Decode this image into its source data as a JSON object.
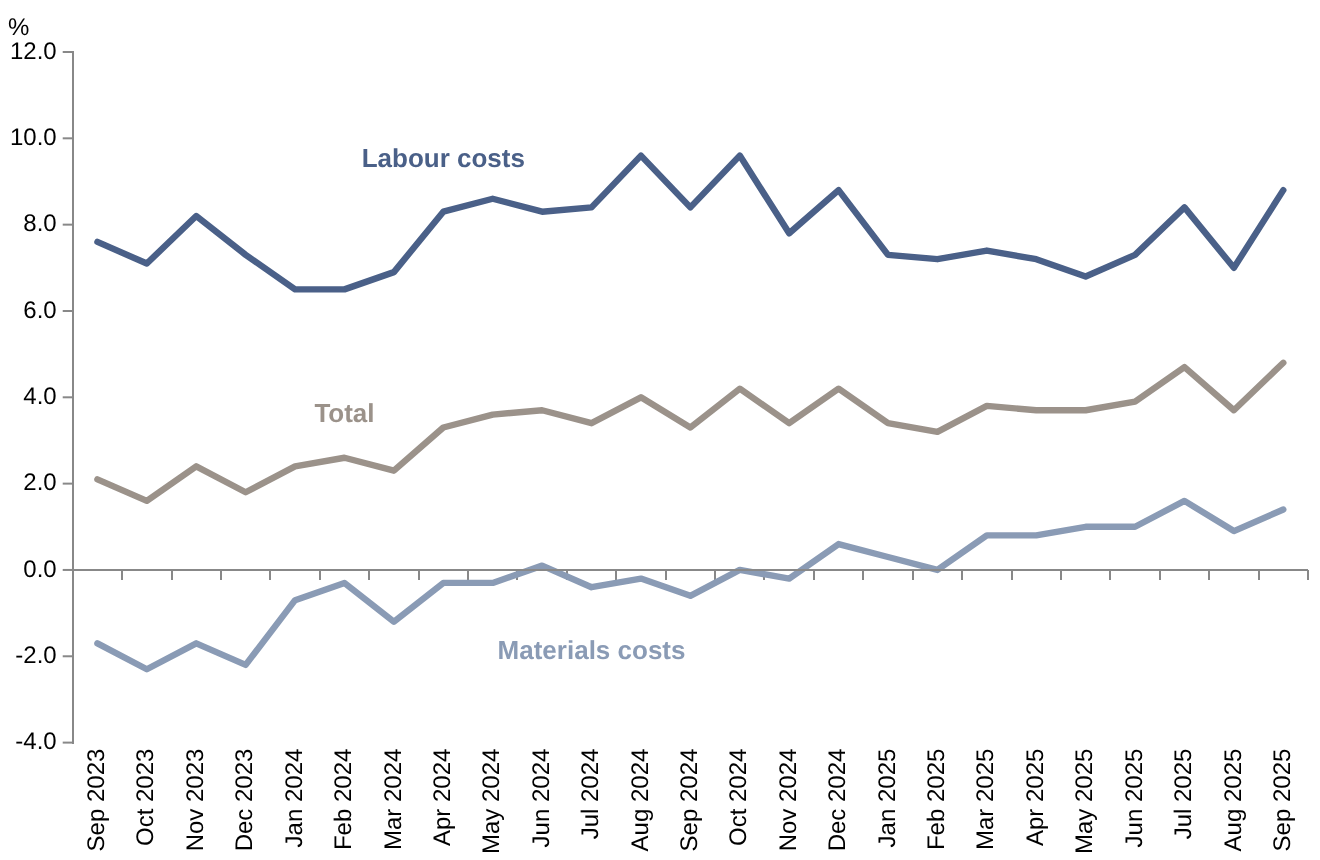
{
  "chart_data": {
    "type": "line",
    "ylabel": "%",
    "categories": [
      "Sep 2023",
      "Oct 2023",
      "Nov 2023",
      "Dec 2023",
      "Jan 2024",
      "Feb 2024",
      "Mar 2024",
      "Apr 2024",
      "May 2024",
      "Jun 2024",
      "Jul 2024",
      "Aug 2024",
      "Sep 2024",
      "Oct 2024",
      "Nov 2024",
      "Dec 2024",
      "Jan 2025",
      "Feb 2025",
      "Mar 2025",
      "Apr 2025",
      "May 2025",
      "Jun 2025",
      "Jul 2025",
      "Aug 2025",
      "Sep 2025"
    ],
    "series": [
      {
        "name": "Labour costs",
        "color": "#4a6088",
        "values": [
          7.6,
          7.1,
          8.2,
          7.3,
          6.5,
          6.5,
          6.9,
          8.3,
          8.6,
          8.3,
          8.4,
          9.6,
          8.4,
          9.6,
          7.8,
          8.8,
          7.3,
          7.2,
          7.4,
          7.2,
          6.8,
          7.3,
          8.4,
          7.0,
          8.8
        ]
      },
      {
        "name": "Total",
        "color": "#9b928a",
        "values": [
          2.1,
          1.6,
          2.4,
          1.8,
          2.4,
          2.6,
          2.3,
          3.3,
          3.6,
          3.7,
          3.4,
          4.0,
          3.3,
          4.2,
          3.4,
          4.2,
          3.4,
          3.2,
          3.8,
          3.7,
          3.7,
          3.9,
          4.7,
          3.7,
          4.8
        ]
      },
      {
        "name": "Materials costs",
        "color": "#8a9bb5",
        "values": [
          -1.7,
          -2.3,
          -1.7,
          -2.2,
          -0.7,
          -0.3,
          -1.2,
          -0.3,
          -0.3,
          0.1,
          -0.4,
          -0.2,
          -0.6,
          0.0,
          -0.2,
          0.6,
          0.3,
          0.0,
          0.8,
          0.8,
          1.0,
          1.0,
          1.6,
          0.9,
          1.4
        ]
      }
    ],
    "ylim": [
      -4,
      12
    ],
    "yticks": [
      {
        "value": -4,
        "label": "-4.0"
      },
      {
        "value": -2,
        "label": "-2.0"
      },
      {
        "value": 0,
        "label": "0.0"
      },
      {
        "value": 2,
        "label": "2.0"
      },
      {
        "value": 4,
        "label": "4.0"
      },
      {
        "value": 6,
        "label": "6.0"
      },
      {
        "value": 8,
        "label": "8.0"
      },
      {
        "value": 10,
        "label": "10.0"
      },
      {
        "value": 12,
        "label": "12.0"
      }
    ],
    "ref_lines": [
      {
        "axis": "y",
        "value": 0,
        "color": "#888888"
      }
    ],
    "grid": false,
    "legend": false,
    "marker": "none",
    "line_style": "solid"
  }
}
